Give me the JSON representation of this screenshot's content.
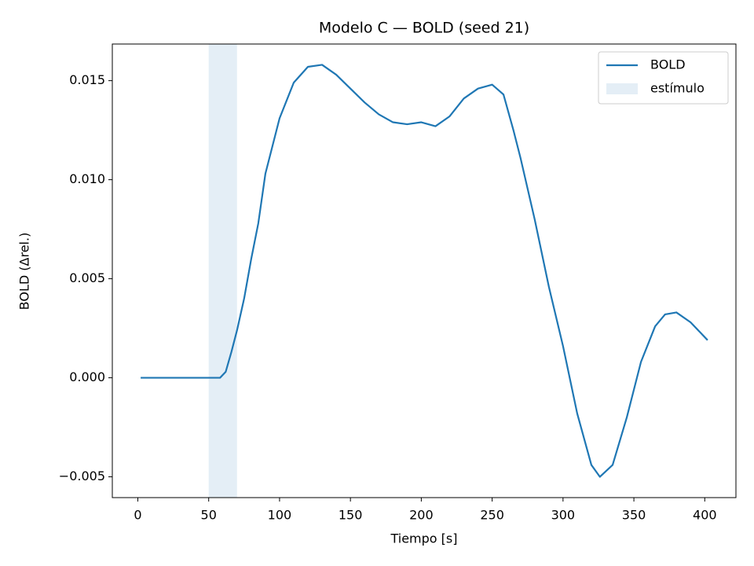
{
  "chart_data": {
    "type": "line",
    "title": "Modelo C — BOLD (seed 21)",
    "x_label": "Tiempo [s]",
    "y_label": "BOLD (Δrel.)",
    "x": [
      2,
      50,
      58,
      62,
      66,
      70,
      75,
      80,
      85,
      90,
      100,
      110,
      120,
      130,
      140,
      150,
      160,
      170,
      180,
      190,
      200,
      210,
      220,
      230,
      240,
      250,
      258,
      265,
      270,
      280,
      290,
      300,
      310,
      320,
      326,
      335,
      345,
      355,
      365,
      372,
      380,
      390,
      402
    ],
    "series": [
      {
        "name": "BOLD",
        "color": "#1f77b4",
        "values": [
          0,
          0,
          0,
          0.0003,
          0.0013,
          0.0024,
          0.004,
          0.006,
          0.0078,
          0.0103,
          0.0131,
          0.0149,
          0.0157,
          0.0158,
          0.0153,
          0.0146,
          0.0139,
          0.0133,
          0.0129,
          0.0128,
          0.0129,
          0.0127,
          0.0132,
          0.0141,
          0.0146,
          0.0148,
          0.0143,
          0.0125,
          0.0111,
          0.008,
          0.0046,
          0.0016,
          -0.0018,
          -0.0044,
          -0.005,
          -0.0044,
          -0.002,
          0.0008,
          0.0026,
          0.0032,
          0.0033,
          0.0028,
          0.0019
        ]
      }
    ],
    "span": {
      "name": "estímulo",
      "color": "#1f77b4",
      "opacity": 0.12,
      "x": [
        50,
        70
      ]
    },
    "xlim": [
      -18,
      422
    ],
    "xticks": [
      0,
      50,
      100,
      150,
      200,
      250,
      300,
      350,
      400
    ],
    "ylim": [
      -0.00605,
      0.01685
    ],
    "yticks": [
      {
        "value": -0.005,
        "label": "−0.005"
      },
      {
        "value": 0,
        "label": "0.000"
      },
      {
        "value": 0.005,
        "label": "0.005"
      },
      {
        "value": 0.01,
        "label": "0.010"
      },
      {
        "value": 0.015,
        "label": "0.015"
      }
    ],
    "grid": false,
    "legend": "upper right"
  }
}
